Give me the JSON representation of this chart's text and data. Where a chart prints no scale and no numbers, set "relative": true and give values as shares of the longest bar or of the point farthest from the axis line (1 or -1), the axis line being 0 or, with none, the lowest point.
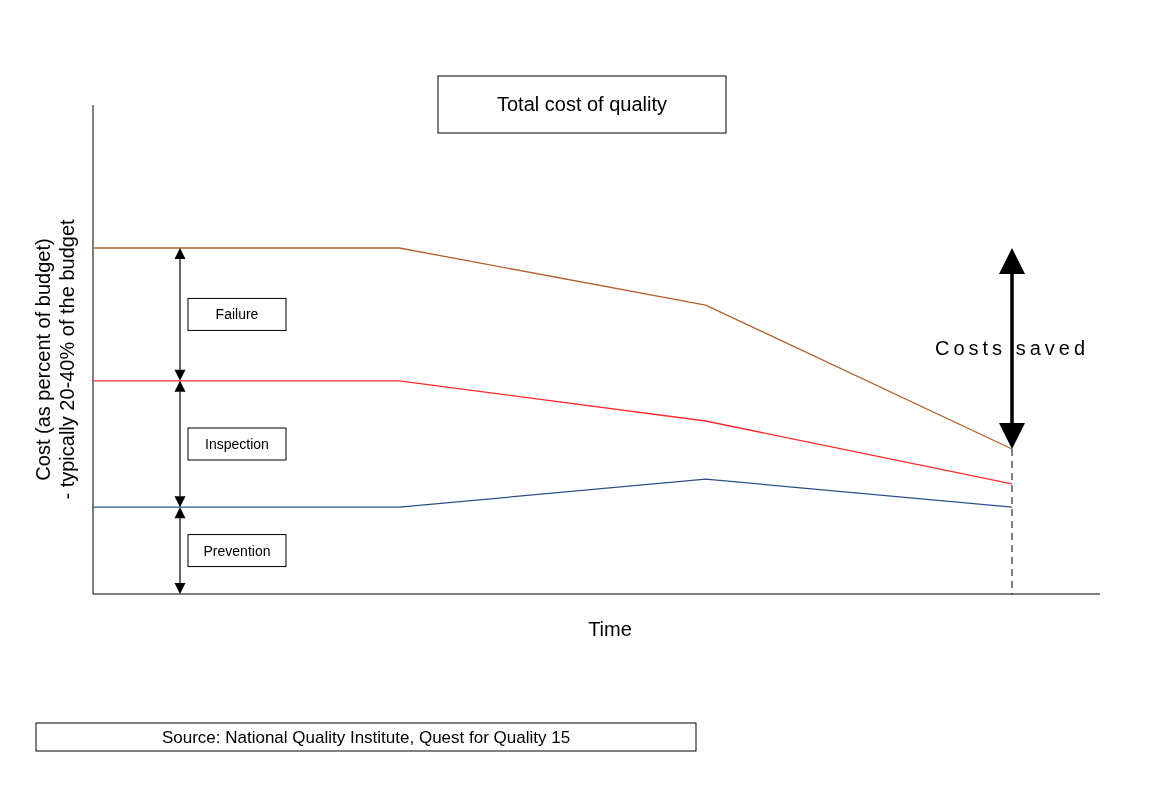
{
  "chart_data": {
    "type": "line",
    "title": "Total cost of quality",
    "xlabel": "Time",
    "ylabel": "Cost (as percent of budget)\n- typically 20-40% of the budget",
    "relative": true,
    "categories": [
      null,
      null,
      null,
      null
    ],
    "series": [
      {
        "color": "#b5602c",
        "values": [
          1,
          1,
          0.835,
          0.419
        ]
      },
      {
        "color": "#ff2a2a",
        "values": [
          0.616,
          0.616,
          0.5,
          0.318
        ]
      },
      {
        "color": "#2a4f8c",
        "values": [
          0.251,
          0.251,
          0.332,
          0.251
        ]
      }
    ],
    "annotations": [
      "Failure",
      "Inspection",
      "Prevention",
      "Costs saved",
      "Source: National Quality Institute, Quest for Quality 15"
    ],
    "marker": "none",
    "line_style": "solid"
  }
}
